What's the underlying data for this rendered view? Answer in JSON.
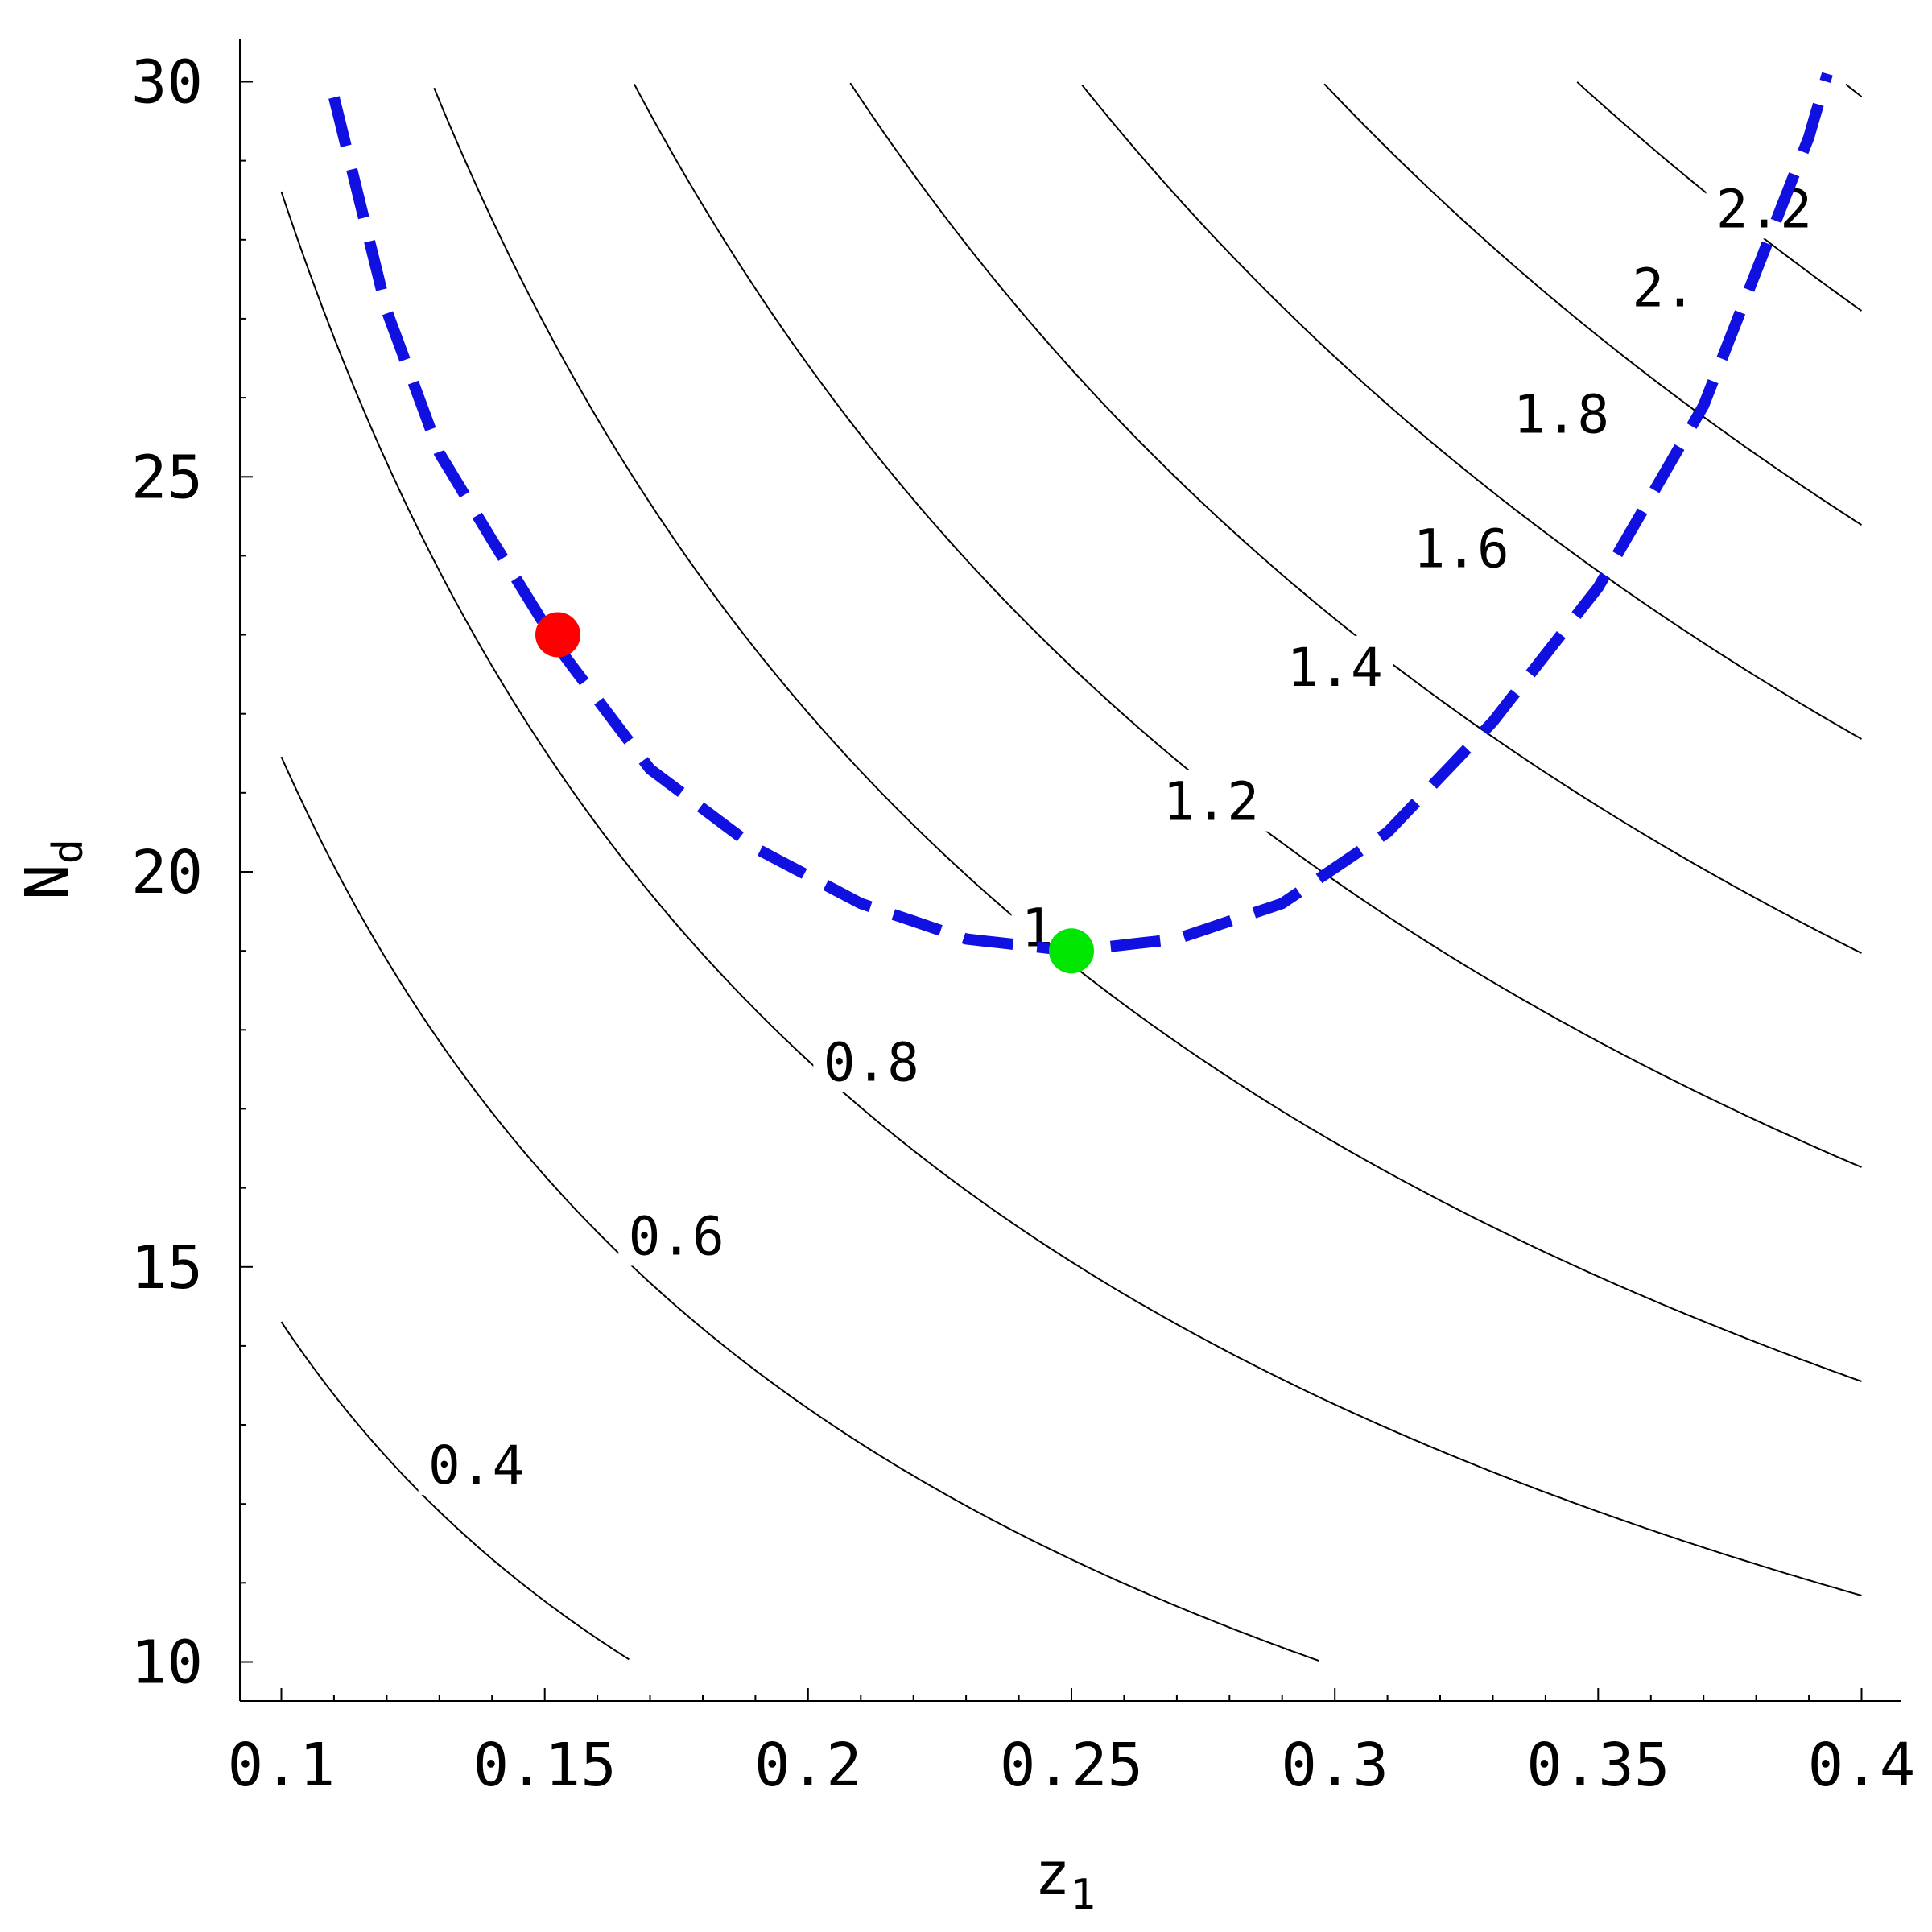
{
  "chart_data": {
    "type": "line",
    "title": "",
    "xlabel": "z",
    "xlabel_sub": "1",
    "ylabel": "N",
    "ylabel_sub": "d",
    "xlim": [
      0.09,
      0.4
    ],
    "ylim": [
      9.5,
      30.5
    ],
    "x_ticks": [
      {
        "v": 0.1,
        "label": "0.1"
      },
      {
        "v": 0.15,
        "label": "0.15"
      },
      {
        "v": 0.2,
        "label": "0.2"
      },
      {
        "v": 0.25,
        "label": "0.25"
      },
      {
        "v": 0.3,
        "label": "0.3"
      },
      {
        "v": 0.35,
        "label": "0.35"
      },
      {
        "v": 0.4,
        "label": "0.4"
      }
    ],
    "y_ticks": [
      {
        "v": 10,
        "label": "10"
      },
      {
        "v": 15,
        "label": "15"
      },
      {
        "v": 20,
        "label": "20"
      },
      {
        "v": 25,
        "label": "25"
      },
      {
        "v": 30,
        "label": "30"
      }
    ],
    "grid": false,
    "contour_levels": [
      {
        "level": 0.4,
        "label": "0.4",
        "label_at": [
          0.137,
          12.5
        ]
      },
      {
        "level": 0.6,
        "label": "0.6",
        "label_at": [
          0.175,
          15.4
        ]
      },
      {
        "level": 0.8,
        "label": "0.8",
        "label_at": [
          0.212,
          17.6
        ]
      },
      {
        "level": 1.0,
        "label": "1",
        "label_at": [
          0.2435,
          19.3
        ]
      },
      {
        "level": 1.2,
        "label": "1.2",
        "label_at": [
          0.2765,
          20.9
        ]
      },
      {
        "level": 1.4,
        "label": "1.4",
        "label_at": [
          0.3,
          22.6
        ]
      },
      {
        "level": 1.6,
        "label": "1.6",
        "label_at": [
          0.324,
          24.1
        ]
      },
      {
        "level": 1.8,
        "label": "1.8",
        "label_at": [
          0.343,
          25.8
        ]
      },
      {
        "level": 2.0,
        "label": "2.",
        "label_at": [
          0.3625,
          27.4
        ]
      },
      {
        "level": 2.2,
        "label": "2.2",
        "label_at": [
          0.3815,
          28.4
        ]
      }
    ],
    "series": [
      {
        "style": "dashed",
        "color": "#1010e0",
        "x": [
          0.11,
          0.12,
          0.13,
          0.14,
          0.153,
          0.17,
          0.19,
          0.21,
          0.23,
          0.25,
          0.27,
          0.29,
          0.31,
          0.33,
          0.35,
          0.37,
          0.38,
          0.39,
          0.3935
        ],
        "y": [
          29.8,
          27.1,
          25.3,
          24.2,
          22.8,
          21.3,
          20.3,
          19.6,
          19.15,
          19.0,
          19.15,
          19.6,
          20.5,
          21.9,
          23.6,
          25.9,
          27.6,
          29.3,
          30.1
        ]
      }
    ],
    "markers": [
      {
        "x": 0.1525,
        "y": 23.0,
        "color": "#ff0000"
      },
      {
        "x": 0.25,
        "y": 19.0,
        "color": "#00e600"
      }
    ]
  }
}
